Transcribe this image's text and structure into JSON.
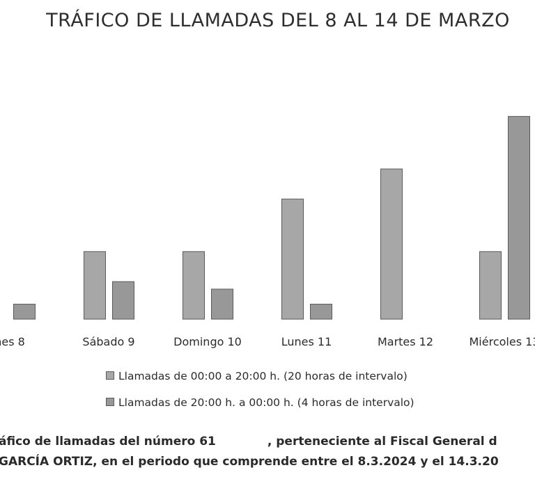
{
  "chart_data": {
    "type": "bar",
    "title": "TRÁFICO DE LLAMADAS DEL 8 AL 14 DE MARZO",
    "categories": [
      "nes 8",
      "Sábado 9",
      "Domingo 10",
      "Lunes 11",
      "Martes 12",
      "Miércoles 13"
    ],
    "series": [
      {
        "name": "Llamadas de 00:00 a 20:00 h. (20 horas de intervalo)",
        "values": [
          null,
          9,
          9,
          16,
          20,
          9
        ],
        "color": "#a7a7a7"
      },
      {
        "name": "Llamadas de 20:00 h. a 00:00 h. (4 horas de intervalo)",
        "values": [
          2,
          5,
          4,
          2,
          null,
          27
        ],
        "color": "#989898"
      }
    ],
    "ylim": [
      0,
      30
    ],
    "grid": false,
    "legend_position": "bottom"
  },
  "caption": {
    "line1_before": "áfico de llamadas del número 61",
    "line1_after": ", perteneciente al Fiscal General d",
    "line2": "GARCÍA ORTIZ, en el periodo que comprende entre el 8.3.2024 y el 14.3.20"
  }
}
